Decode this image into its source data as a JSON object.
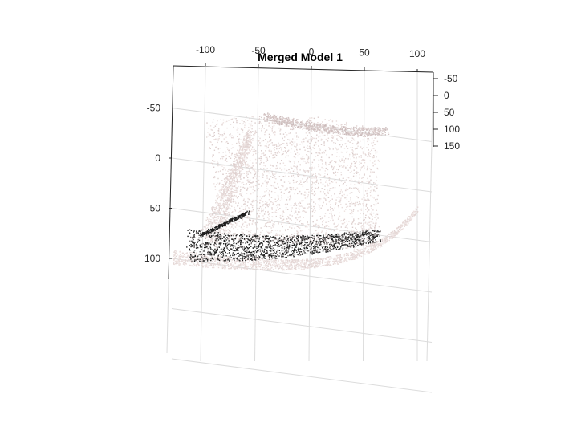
{
  "chart_data": {
    "type": "scatter",
    "title": "Merged Model 1",
    "xlabel": "",
    "ylabel": "",
    "zlabel": "",
    "grid": true,
    "x_ticks": [
      "-100",
      "-50",
      "0",
      "50",
      "100"
    ],
    "y_ticks": [
      "-50",
      "0",
      "50",
      "100"
    ],
    "z_ticks": [
      "-50",
      "0",
      "50",
      "100",
      "150"
    ],
    "xlim": [
      -130,
      110
    ],
    "ylim": [
      -90,
      190
    ],
    "zlim": [
      -60,
      150
    ],
    "point_colors": {
      "light": "#efe3e1",
      "mid": "#c8b8b8",
      "dark": "#1e1e1e"
    },
    "series": [
      {
        "name": "",
        "description_regions": [
          {
            "region": "upper-sheet",
            "x": [
              -80,
              70
            ],
            "y": [
              -55,
              -20
            ],
            "color": "mid"
          },
          {
            "region": "body",
            "x": [
              -100,
              60
            ],
            "y": [
              -20,
              85
            ],
            "color": "light"
          },
          {
            "region": "brim",
            "x": [
              -130,
              110
            ],
            "y": [
              75,
              120
            ],
            "color": "light"
          },
          {
            "region": "dark-band",
            "x": [
              -110,
              60
            ],
            "y": [
              78,
              108
            ],
            "color": "dark"
          }
        ]
      }
    ]
  }
}
